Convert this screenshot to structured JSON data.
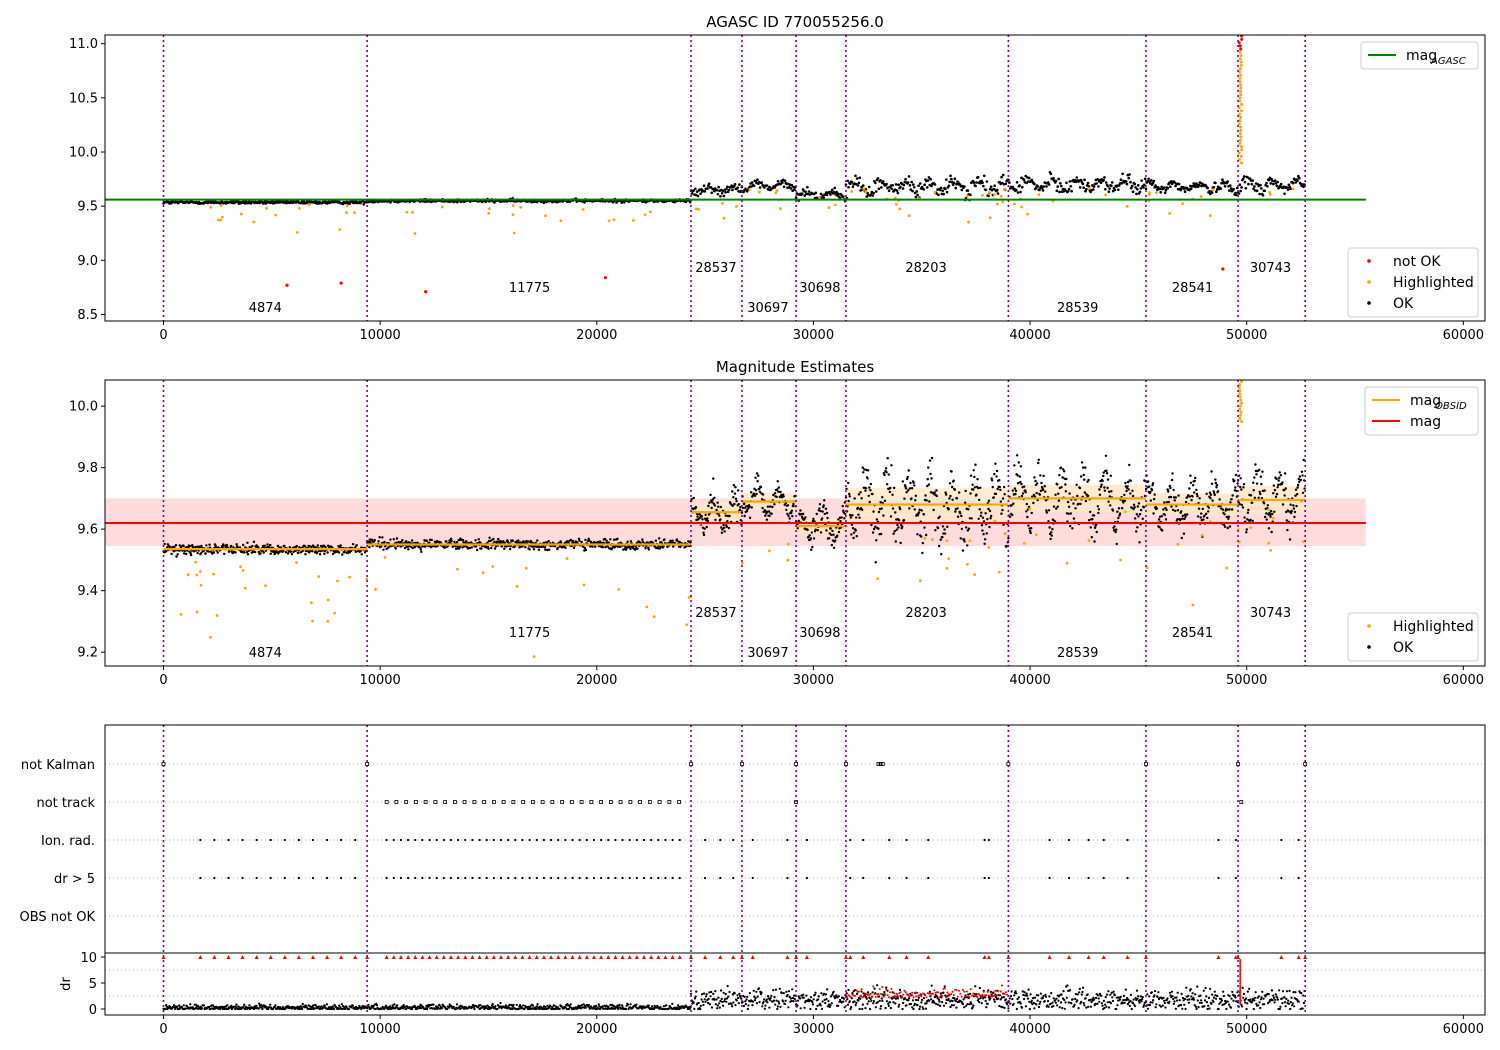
{
  "chart_data": [
    {
      "type": "scatter",
      "title": "AGASC ID 770055256.0",
      "xlim": [
        -2700,
        61000
      ],
      "ylim": [
        8.44,
        11.08
      ],
      "xticks": [
        0,
        10000,
        20000,
        30000,
        40000,
        50000,
        60000
      ],
      "yticks": [
        8.5,
        9.0,
        9.5,
        10.0,
        10.5,
        11.0
      ],
      "grid": false,
      "legends": [
        {
          "placement": "top-right",
          "entries": [
            {
              "label": "mag",
              "sub": "AGASC",
              "color": "#008000",
              "kind": "line"
            }
          ]
        },
        {
          "placement": "bottom-right",
          "entries": [
            {
              "label": "not OK",
              "color": "#ff0000",
              "kind": "dot"
            },
            {
              "label": "Highlighted",
              "color": "#ffa500",
              "kind": "dot"
            },
            {
              "label": "OK",
              "color": "#000000",
              "kind": "dot"
            }
          ]
        }
      ],
      "agasc_mag": 9.56,
      "agasc_line_x": [
        -2700,
        55500
      ]
    },
    {
      "type": "scatter",
      "title": "Magnitude Estimates",
      "xlim": [
        -2700,
        61000
      ],
      "ylim": [
        9.155,
        10.085
      ],
      "xticks": [
        0,
        10000,
        20000,
        30000,
        40000,
        50000,
        60000
      ],
      "yticks": [
        9.2,
        9.4,
        9.6,
        9.8,
        10.0
      ],
      "grid": false,
      "legends": [
        {
          "placement": "top-right",
          "entries": [
            {
              "label": "mag",
              "sub": "OBSID",
              "color": "#ffa500",
              "kind": "line"
            },
            {
              "label": "mag",
              "sub": "",
              "color": "#ff0000",
              "kind": "line"
            }
          ]
        },
        {
          "placement": "bottom-right",
          "entries": [
            {
              "label": "Highlighted",
              "color": "#ffa500",
              "kind": "dot"
            },
            {
              "label": "OK",
              "color": "#000000",
              "kind": "dot"
            }
          ]
        }
      ],
      "mag": 9.62,
      "mag_band": [
        9.545,
        9.7
      ],
      "mag_line_x": [
        -2700,
        55500
      ]
    },
    {
      "type": "scatter",
      "title": "",
      "flag_rows": [
        "not Kalman",
        "not track",
        "Ion. rad.",
        "dr > 5",
        "OBS not OK"
      ],
      "dr_ylabel": "dr",
      "dr_yticks": [
        0,
        5,
        10
      ],
      "xticks": [
        0,
        10000,
        20000,
        30000,
        40000,
        50000,
        60000
      ]
    }
  ],
  "observations": [
    {
      "obsid": "4874",
      "start": 0,
      "end": 9400,
      "label_x": 4700,
      "level": 3,
      "mean_mag": 9.535,
      "spread": 0.012
    },
    {
      "obsid": "11775",
      "start": 9400,
      "end": 24350,
      "label_x": 16900,
      "level": 2,
      "mean_mag": 9.55,
      "spread": 0.012
    },
    {
      "obsid": "28537",
      "start": 24350,
      "end": 26700,
      "label_x": 25500,
      "level": 1,
      "mean_mag": 9.655,
      "spread": 0.035
    },
    {
      "obsid": "30697",
      "start": 26700,
      "end": 29200,
      "label_x": 27900,
      "level": 3,
      "mean_mag": 9.69,
      "spread": 0.03
    },
    {
      "obsid": "30698",
      "start": 29200,
      "end": 31500,
      "label_x": 30300,
      "level": 2,
      "mean_mag": 9.61,
      "spread": 0.03
    },
    {
      "obsid": "28203",
      "start": 31500,
      "end": 39000,
      "label_x": 35200,
      "level": 1,
      "mean_mag": 9.68,
      "spread": 0.06
    },
    {
      "obsid": "28539",
      "start": 39000,
      "end": 45350,
      "label_x": 42200,
      "level": 3,
      "mean_mag": 9.7,
      "spread": 0.05
    },
    {
      "obsid": "28541",
      "start": 45350,
      "end": 49600,
      "label_x": 47500,
      "level": 2,
      "mean_mag": 9.68,
      "spread": 0.04
    },
    {
      "obsid": "30743",
      "start": 49600,
      "end": 52700,
      "label_x": 51100,
      "level": 1,
      "mean_mag": 9.695,
      "spread": 0.05
    }
  ],
  "colors": {
    "ok": "#000000",
    "highlighted": "#ffa500",
    "not_ok": "#ff0000",
    "agasc": "#008000",
    "obs_line": "#800080",
    "band": "#ffdcdc",
    "grid_dotted": "#b0b0b0"
  }
}
